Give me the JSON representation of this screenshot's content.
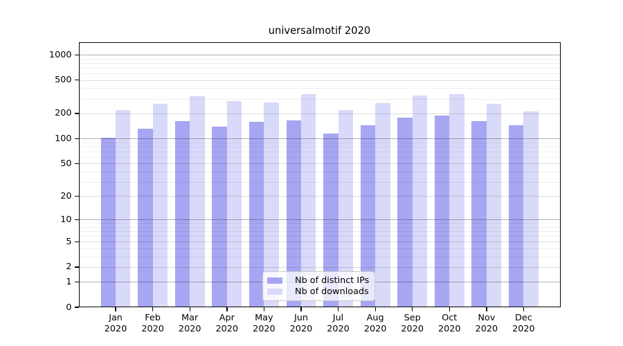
{
  "chart_data": {
    "type": "bar",
    "title": "universalmotif 2020",
    "categories": [
      "Jan",
      "Feb",
      "Mar",
      "Apr",
      "May",
      "Jun",
      "Jul",
      "Aug",
      "Sep",
      "Oct",
      "Nov",
      "Dec"
    ],
    "category_year": "2020",
    "series": [
      {
        "name": "Nb of distinct IPs",
        "color": "#a6a6f2",
        "values": [
          102,
          131,
          161,
          138,
          158,
          164,
          115,
          144,
          178,
          187,
          161,
          145
        ]
      },
      {
        "name": "Nb of downloads",
        "color": "#d9d9fa",
        "values": [
          220,
          260,
          320,
          280,
          270,
          340,
          220,
          265,
          325,
          340,
          260,
          210
        ]
      }
    ],
    "y_ticks": [
      0,
      1,
      2,
      5,
      10,
      20,
      50,
      100,
      200,
      500,
      1000
    ],
    "y_scale": "log10(value+1)",
    "ylim": [
      0,
      1410
    ],
    "grid": {
      "major": [
        1,
        10,
        100,
        1000
      ],
      "mid": [
        2,
        5,
        20,
        50,
        200,
        500
      ],
      "minor": [
        3,
        4,
        6,
        7,
        8,
        9,
        30,
        40,
        60,
        70,
        80,
        90,
        300,
        400,
        600,
        700,
        800,
        900
      ]
    },
    "legend_position": "inside-bottom-center",
    "xlabel": "",
    "ylabel": ""
  },
  "colors": {
    "bar_distinct_ips": "#a6a6f2",
    "bar_downloads": "#d9d9fa",
    "axis": "#000000",
    "grid_major": "#b3b3b3",
    "grid_mid": "#dcdcdc",
    "grid_minor": "#eeeeee",
    "background": "#ffffff"
  }
}
